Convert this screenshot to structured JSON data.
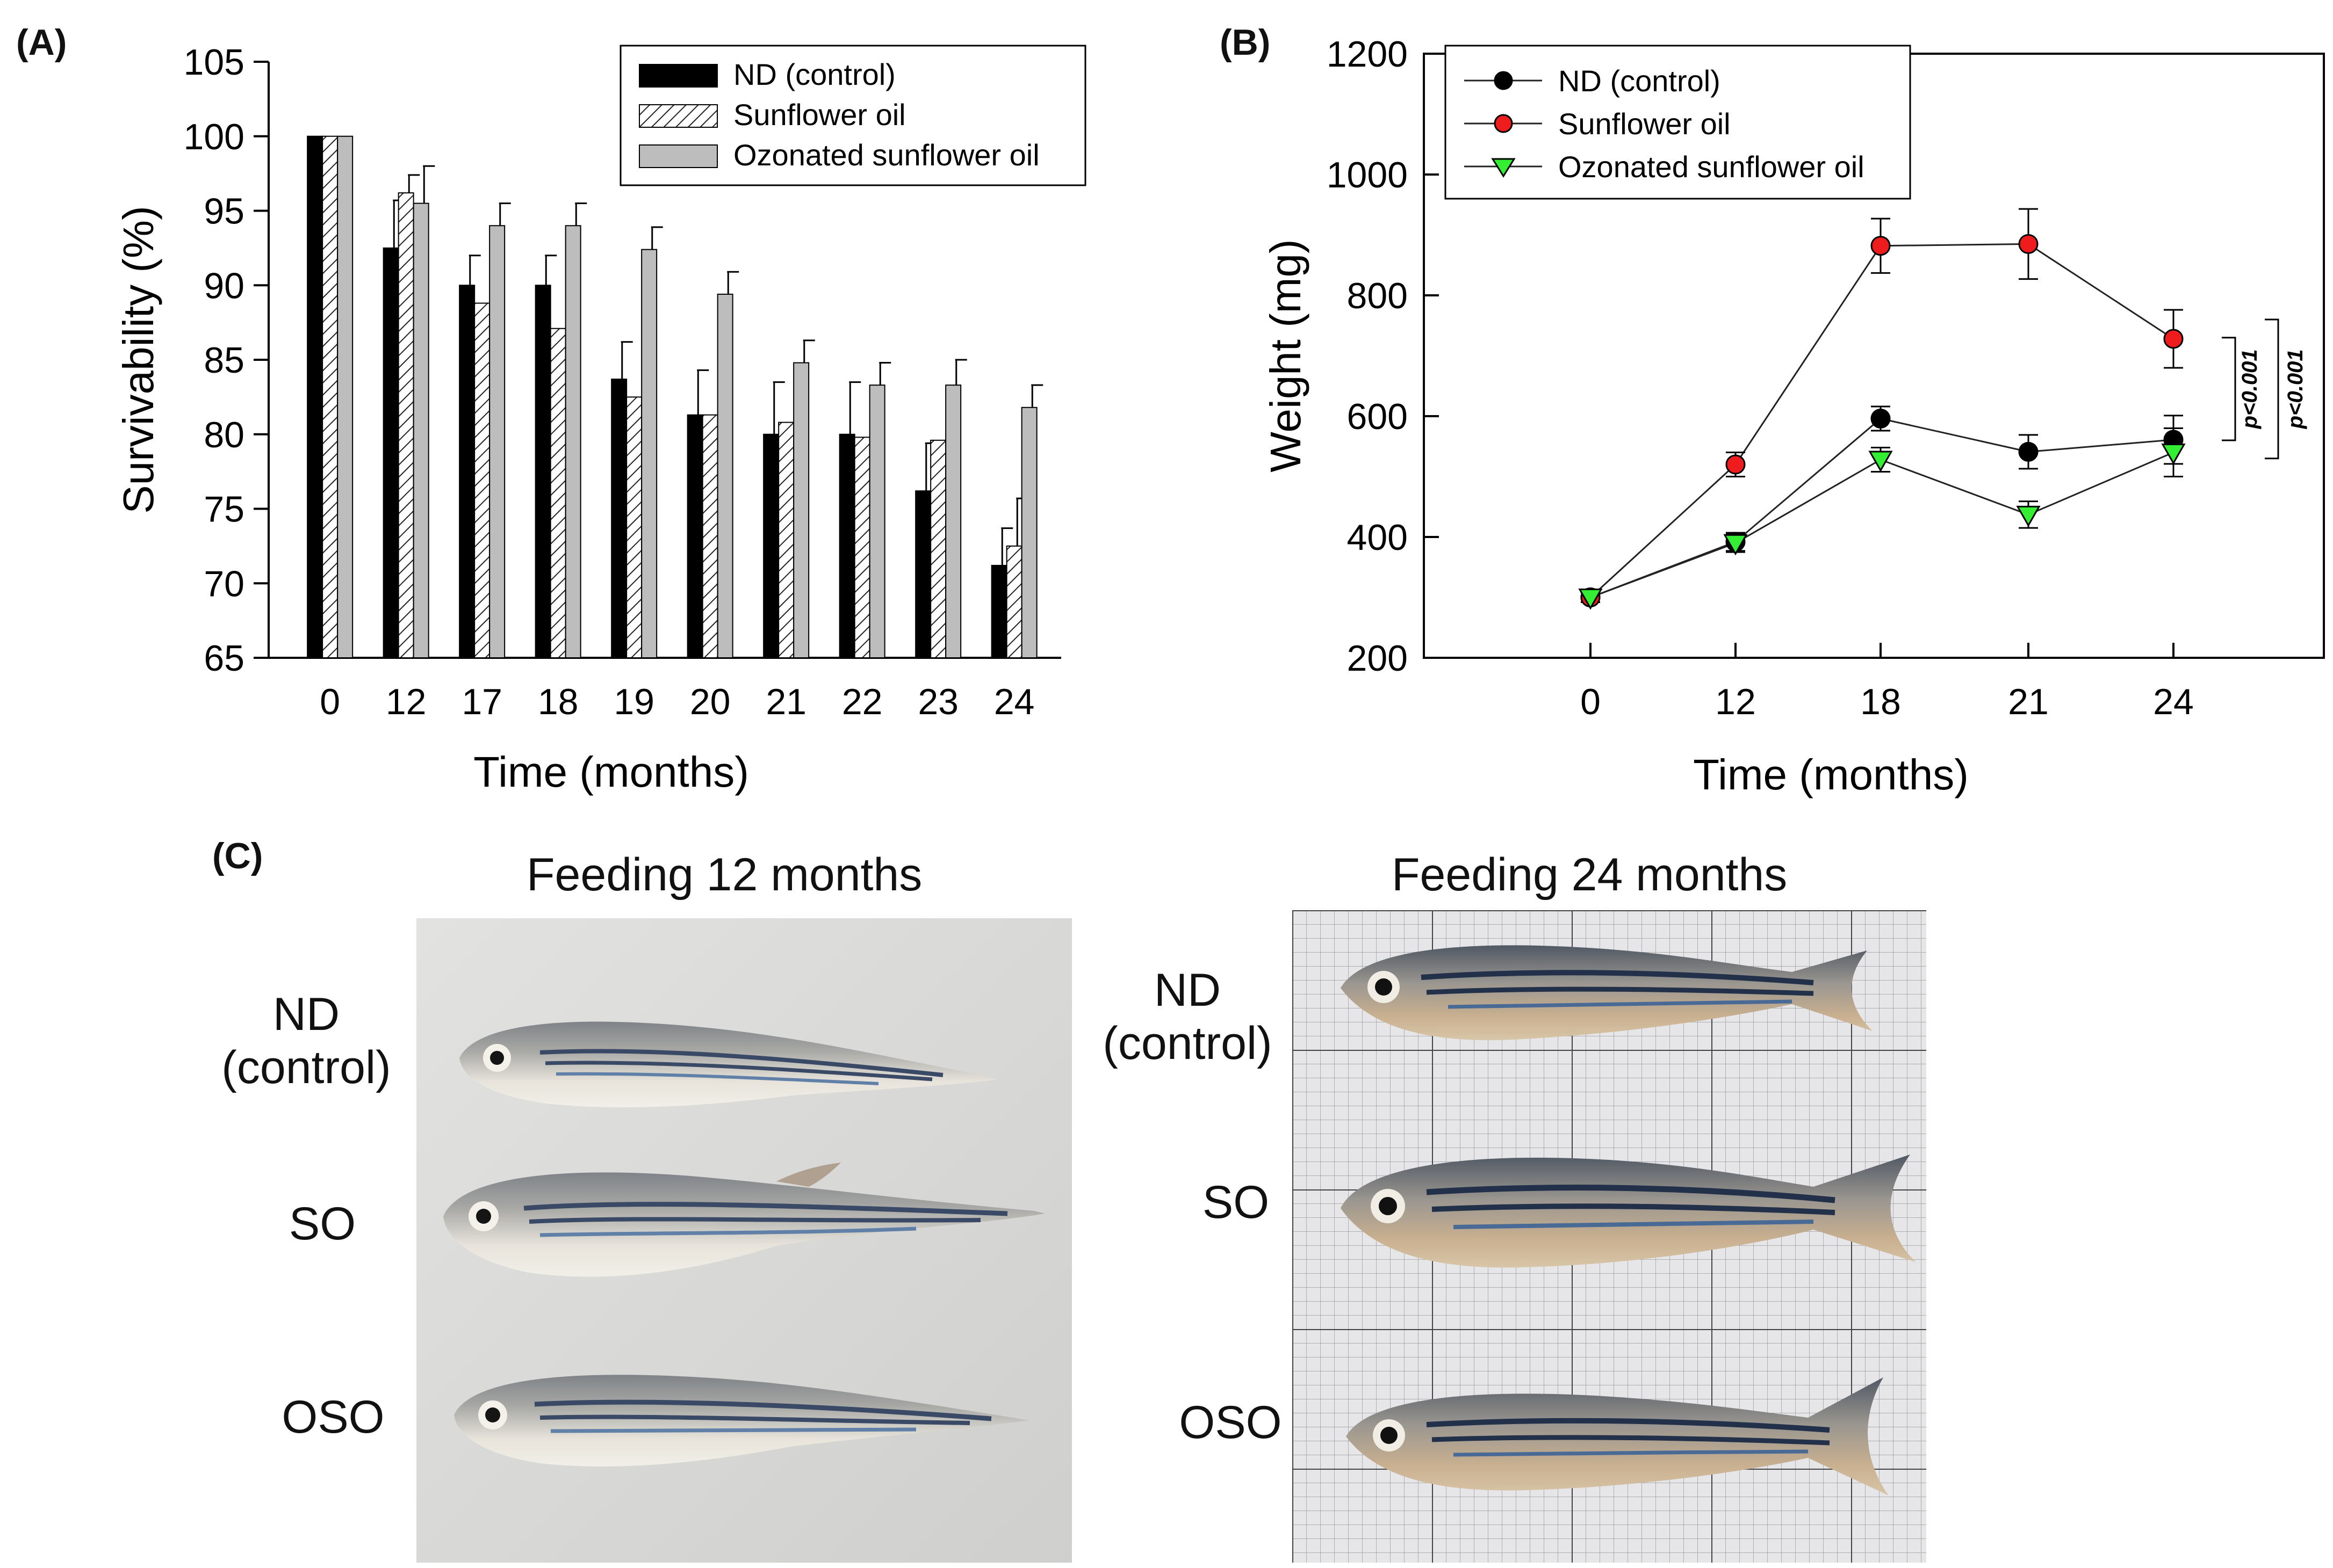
{
  "panelA": {
    "label": "(A)",
    "chart_data": {
      "type": "bar",
      "title": "",
      "xlabel": "Time (months)",
      "ylabel": "Survivability (%)",
      "ylim": [
        65,
        105
      ],
      "yticks": [
        65,
        70,
        75,
        80,
        85,
        90,
        95,
        100,
        105
      ],
      "categories": [
        "0",
        "12",
        "17",
        "18",
        "19",
        "20",
        "21",
        "22",
        "23",
        "24"
      ],
      "legend_position": "top-right",
      "series": [
        {
          "name": "ND (control)",
          "style": "solid-black",
          "values": [
            100,
            92.5,
            90,
            90,
            83.7,
            81.3,
            80,
            80,
            76.2,
            71.2
          ],
          "errors": [
            0,
            3.2,
            2.0,
            2.0,
            2.5,
            3.0,
            3.5,
            3.5,
            3.2,
            2.5
          ]
        },
        {
          "name": "Sunflower oil",
          "style": "hatched-white",
          "values": [
            100,
            96.2,
            88.8,
            87.1,
            82.5,
            81.3,
            80.8,
            79.8,
            79.6,
            72.5
          ],
          "errors": [
            0,
            1.2,
            0,
            0,
            0,
            0,
            0,
            0,
            0,
            3.2
          ]
        },
        {
          "name": "Ozonated sunflower oil",
          "style": "solid-gray",
          "values": [
            100,
            95.5,
            94,
            94,
            92.4,
            89.4,
            84.8,
            83.3,
            83.3,
            81.8
          ],
          "errors": [
            0,
            2.5,
            1.5,
            1.5,
            1.5,
            1.5,
            1.5,
            1.5,
            1.7,
            1.5
          ]
        }
      ]
    }
  },
  "panelB": {
    "label": "(B)",
    "chart_data": {
      "type": "line",
      "title": "",
      "xlabel": "Time (months)",
      "ylabel": "Weight (mg)",
      "ylim": [
        200,
        1200
      ],
      "yticks": [
        200,
        400,
        600,
        800,
        1000,
        1200
      ],
      "x": [
        0,
        12,
        18,
        21,
        24
      ],
      "legend_position": "top-left",
      "series": [
        {
          "name": "ND (control)",
          "color": "#000000",
          "marker": "circle",
          "values": [
            300,
            392,
            596,
            541,
            561
          ],
          "errors": [
            8,
            15,
            20,
            28,
            40
          ]
        },
        {
          "name": "Sunflower oil",
          "color": "#ee1c1c",
          "marker": "circle",
          "values": [
            300,
            520,
            882,
            885,
            728
          ],
          "errors": [
            8,
            20,
            45,
            58,
            48
          ]
        },
        {
          "name": "Ozonated sunflower oil",
          "color": "#33ee33",
          "marker": "triangle-down",
          "values": [
            300,
            390,
            528,
            437,
            540
          ],
          "errors": [
            8,
            15,
            20,
            22,
            40
          ]
        }
      ],
      "annotations": [
        "p<0.001",
        "p<0.001"
      ]
    }
  },
  "panelC": {
    "label": "(C)",
    "left_title": "Feeding 12 months",
    "right_title": "Feeding 24 months",
    "rows_left": [
      {
        "line1": "ND",
        "line2": "(control)"
      },
      {
        "line1": "SO",
        "line2": ""
      },
      {
        "line1": "OSO",
        "line2": ""
      }
    ],
    "rows_right": [
      {
        "line1": "ND",
        "line2": "(control)"
      },
      {
        "line1": "SO",
        "line2": ""
      },
      {
        "line1": "OSO",
        "line2": ""
      }
    ],
    "colors": {
      "left_bg": "#d8d8d6",
      "right_bg": "#e4e4e6",
      "grid": "#555555",
      "fish_body": "#c9c3b8",
      "fish_stripe": "#3a4a66"
    }
  }
}
